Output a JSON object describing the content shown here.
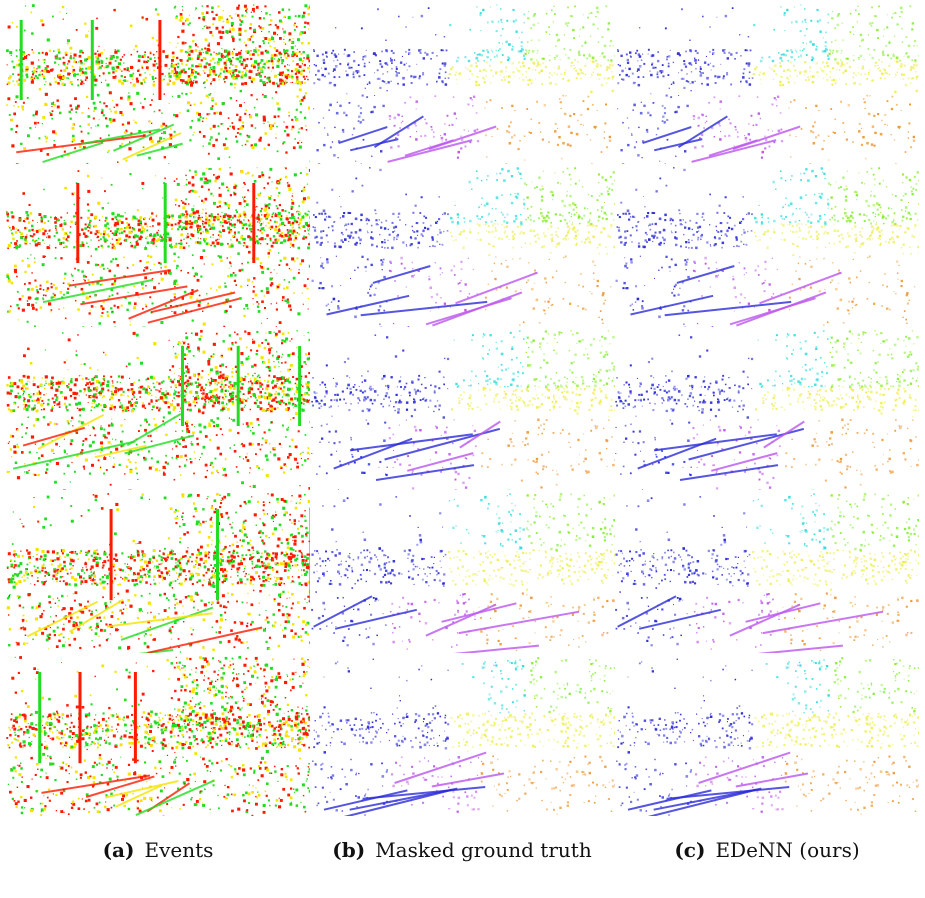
{
  "figure": {
    "columns": [
      {
        "key": "events",
        "letter": "(a)",
        "label": "Events"
      },
      {
        "key": "masked_gt",
        "letter": "(b)",
        "label": "Masked ground truth"
      },
      {
        "key": "edenn",
        "letter": "(c)",
        "label": "EDeNN (ours)"
      }
    ],
    "rows": 5,
    "colors": {
      "event_positive": "#ff1a00",
      "event_negative": "#22dd22",
      "event_overlap": "#f5e400",
      "flow_left": "#2b2bd8",
      "flow_up": "#88ee33",
      "flow_upleft": "#33dddd",
      "flow_right": "#ee9933",
      "flow_down": "#bb55ee",
      "flow_downright": "#eeee55"
    }
  }
}
